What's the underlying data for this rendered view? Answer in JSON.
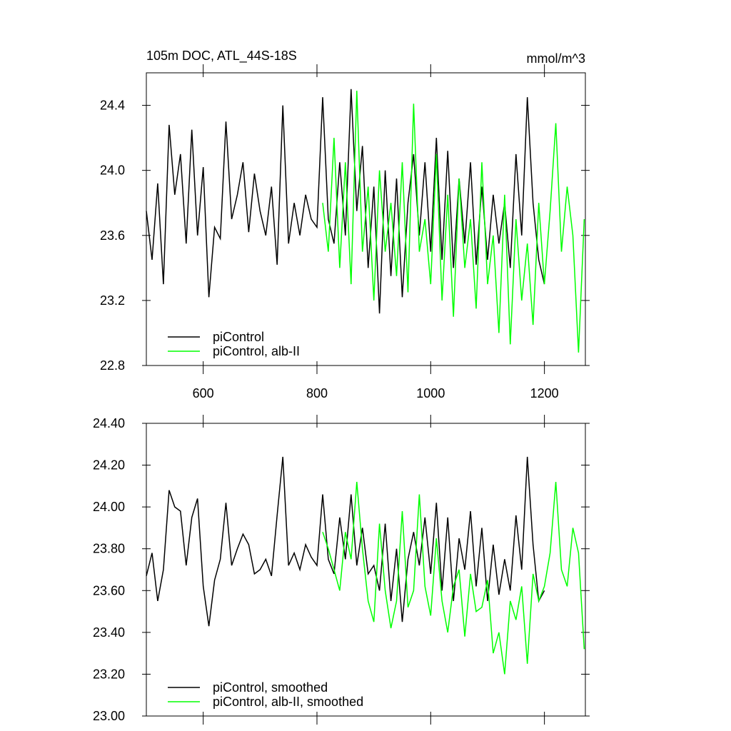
{
  "chart_data": [
    {
      "type": "line",
      "title": "105m DOC, ATL_44S-18S",
      "units": "mmol/m^3",
      "xlim": [
        500,
        1272
      ],
      "ylim": [
        22.8,
        24.6
      ],
      "xticks": [
        600,
        800,
        1000,
        1200
      ],
      "xtick_labels": true,
      "yticks": [
        22.8,
        23.2,
        23.6,
        {
          "value": 24.0,
          "label": "24.0"
        },
        24.4
      ],
      "legend": "lower left",
      "series": [
        {
          "name": "piControl",
          "color": "#000000",
          "x": [
            500,
            510,
            520,
            530,
            540,
            550,
            560,
            570,
            580,
            590,
            600,
            610,
            620,
            630,
            640,
            650,
            660,
            670,
            680,
            690,
            700,
            710,
            720,
            730,
            740,
            750,
            760,
            770,
            780,
            790,
            800,
            810,
            820,
            830,
            840,
            850,
            860,
            870,
            880,
            890,
            900,
            910,
            920,
            930,
            940,
            950,
            960,
            970,
            980,
            990,
            1000,
            1010,
            1020,
            1030,
            1040,
            1050,
            1060,
            1070,
            1080,
            1090,
            1100,
            1110,
            1120,
            1130,
            1140,
            1150,
            1160,
            1170,
            1180,
            1190,
            1200
          ],
          "values": [
            23.75,
            23.45,
            23.92,
            23.3,
            24.28,
            23.85,
            24.1,
            23.55,
            24.25,
            23.6,
            24.02,
            23.22,
            23.65,
            23.58,
            24.3,
            23.7,
            23.85,
            24.05,
            23.62,
            23.98,
            23.75,
            23.6,
            23.9,
            23.42,
            24.4,
            23.55,
            23.8,
            23.6,
            23.85,
            23.7,
            23.65,
            24.45,
            23.7,
            23.55,
            24.05,
            23.6,
            24.5,
            23.75,
            24.15,
            23.4,
            23.9,
            23.12,
            24.0,
            23.35,
            23.95,
            23.22,
            23.8,
            24.1,
            23.6,
            24.05,
            23.5,
            24.2,
            23.45,
            24.12,
            23.4,
            23.95,
            23.55,
            24.05,
            23.42,
            23.9,
            23.45,
            23.85,
            23.55,
            23.8,
            23.4,
            24.1,
            23.6,
            24.45,
            23.8,
            23.45,
            23.3
          ]
        },
        {
          "name": "piControl, alb-II",
          "color": "#00ff00",
          "x": [
            810,
            820,
            830,
            840,
            850,
            860,
            870,
            880,
            890,
            900,
            910,
            920,
            930,
            940,
            950,
            960,
            970,
            980,
            990,
            1000,
            1010,
            1020,
            1030,
            1040,
            1050,
            1060,
            1070,
            1080,
            1090,
            1100,
            1110,
            1120,
            1130,
            1140,
            1150,
            1160,
            1170,
            1180,
            1190,
            1200,
            1210,
            1220,
            1230,
            1240,
            1250,
            1260,
            1270
          ],
          "values": [
            23.8,
            23.5,
            24.2,
            23.4,
            24.05,
            23.3,
            24.49,
            23.5,
            23.9,
            23.2,
            24.0,
            23.5,
            23.8,
            23.35,
            24.05,
            23.25,
            24.41,
            23.5,
            23.7,
            23.3,
            24.1,
            23.2,
            23.85,
            23.1,
            23.95,
            23.4,
            23.7,
            23.15,
            24.05,
            23.3,
            23.6,
            23.0,
            23.85,
            22.93,
            23.7,
            23.2,
            23.55,
            23.05,
            23.8,
            23.3,
            23.75,
            24.29,
            23.5,
            23.9,
            23.6,
            22.88,
            23.7
          ]
        }
      ]
    },
    {
      "type": "line",
      "xlim": [
        500,
        1272
      ],
      "ylim": [
        23.0,
        24.4
      ],
      "xticks": [
        600,
        800,
        1000,
        1200
      ],
      "xtick_labels": false,
      "yticks": [
        {
          "value": 23.0,
          "label": "23.00"
        },
        {
          "value": 23.2,
          "label": "23.20"
        },
        {
          "value": 23.4,
          "label": "23.40"
        },
        {
          "value": 23.6,
          "label": "23.60"
        },
        {
          "value": 23.8,
          "label": "23.80"
        },
        {
          "value": 24.0,
          "label": "24.00"
        },
        {
          "value": 24.2,
          "label": "24.20"
        },
        {
          "value": 24.4,
          "label": "24.40"
        }
      ],
      "legend": "lower left",
      "series": [
        {
          "name": "piControl, smoothed",
          "color": "#000000",
          "x": [
            500,
            510,
            520,
            530,
            540,
            550,
            560,
            570,
            580,
            590,
            600,
            610,
            620,
            630,
            640,
            650,
            660,
            670,
            680,
            690,
            700,
            710,
            720,
            730,
            740,
            750,
            760,
            770,
            780,
            790,
            800,
            810,
            820,
            830,
            840,
            850,
            860,
            870,
            880,
            890,
            900,
            910,
            920,
            930,
            940,
            950,
            960,
            970,
            980,
            990,
            1000,
            1010,
            1020,
            1030,
            1040,
            1050,
            1060,
            1070,
            1080,
            1090,
            1100,
            1110,
            1120,
            1130,
            1140,
            1150,
            1160,
            1170,
            1180,
            1190,
            1200
          ],
          "values": [
            23.67,
            23.78,
            23.55,
            23.7,
            24.08,
            24.0,
            23.98,
            23.72,
            23.95,
            24.04,
            23.62,
            23.43,
            23.65,
            23.75,
            24.02,
            23.72,
            23.8,
            23.87,
            23.82,
            23.68,
            23.7,
            23.75,
            23.67,
            23.96,
            24.24,
            23.72,
            23.78,
            23.7,
            23.82,
            23.76,
            23.72,
            24.06,
            23.75,
            23.68,
            23.95,
            23.75,
            24.06,
            23.72,
            23.9,
            23.68,
            23.72,
            23.6,
            23.92,
            23.55,
            23.8,
            23.45,
            23.75,
            23.88,
            23.72,
            23.95,
            23.68,
            24.02,
            23.6,
            23.95,
            23.55,
            23.85,
            23.7,
            23.98,
            23.62,
            23.9,
            23.55,
            23.82,
            23.58,
            23.75,
            23.6,
            23.96,
            23.7,
            24.24,
            23.82,
            23.55,
            23.6
          ]
        },
        {
          "name": "piControl, alb-II, smoothed",
          "color": "#00ff00",
          "x": [
            810,
            820,
            830,
            840,
            850,
            860,
            870,
            880,
            890,
            900,
            910,
            920,
            930,
            940,
            950,
            960,
            970,
            980,
            990,
            1000,
            1010,
            1020,
            1030,
            1040,
            1050,
            1060,
            1070,
            1080,
            1090,
            1100,
            1110,
            1120,
            1130,
            1140,
            1150,
            1160,
            1170,
            1180,
            1190,
            1200,
            1210,
            1220,
            1230,
            1240,
            1250,
            1260,
            1270
          ],
          "values": [
            23.88,
            23.8,
            23.7,
            23.6,
            23.88,
            23.75,
            24.12,
            23.8,
            23.55,
            23.45,
            23.92,
            23.6,
            23.42,
            23.55,
            23.98,
            23.52,
            23.6,
            24.06,
            23.62,
            23.48,
            23.85,
            23.55,
            23.4,
            23.62,
            23.7,
            23.38,
            23.68,
            23.5,
            23.52,
            23.65,
            23.3,
            23.4,
            23.2,
            23.55,
            23.46,
            23.62,
            23.25,
            23.68,
            23.55,
            23.62,
            23.78,
            24.12,
            23.7,
            23.62,
            23.9,
            23.78,
            23.32
          ]
        }
      ]
    }
  ]
}
